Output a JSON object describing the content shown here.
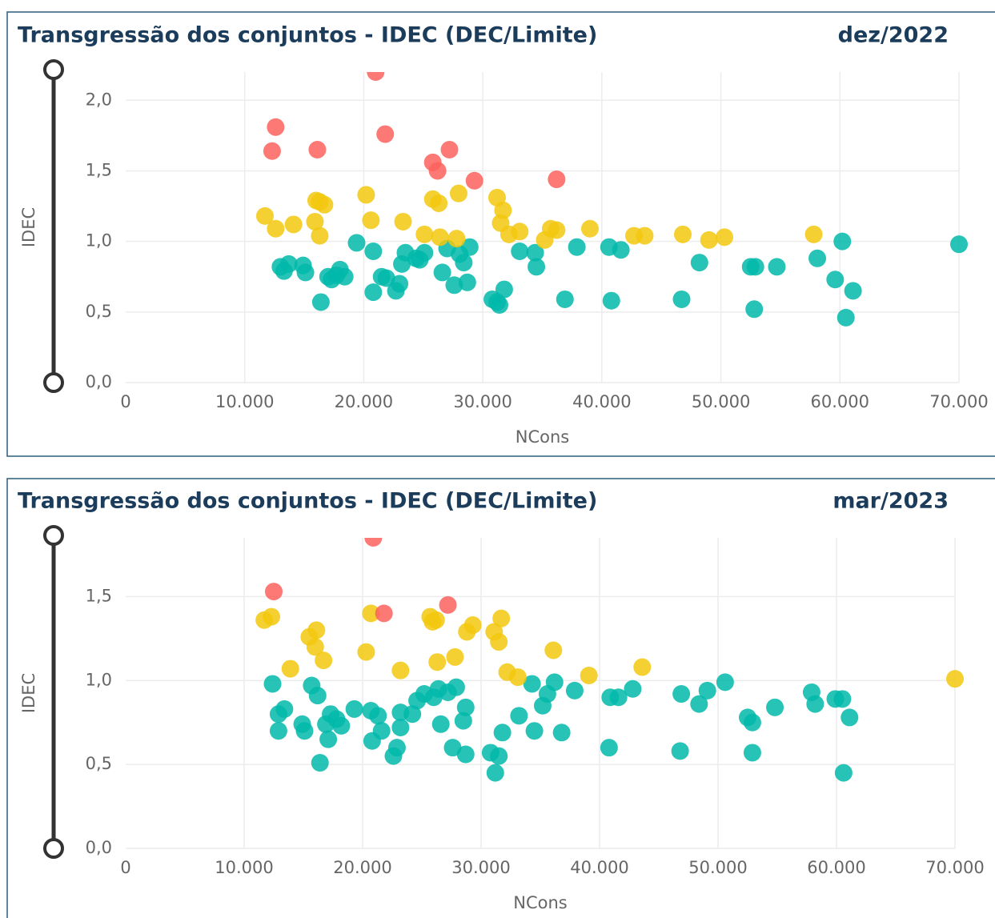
{
  "chart_data": [
    {
      "type": "scatter",
      "title": "Transgressão dos conjuntos - IDEC (DEC/Limite)",
      "subtitle": "dez/2022",
      "x_label": "NCons",
      "y_label": "IDEC",
      "grid": true,
      "xlim": [
        0,
        70000
      ],
      "ylim": [
        0,
        2.2
      ],
      "xticks": [
        0,
        {
          "value": 10000,
          "label": "10.000"
        },
        {
          "value": 20000,
          "label": "20.000"
        },
        {
          "value": 30000,
          "label": "30.000"
        },
        {
          "value": 40000,
          "label": "40.000"
        },
        {
          "value": 50000,
          "label": "50.000"
        },
        {
          "value": 60000,
          "label": "60.000"
        },
        {
          "value": 70000,
          "label": "70.000"
        }
      ],
      "yticks": [
        {
          "value": 0,
          "label": "0,0"
        },
        {
          "value": 0.5,
          "label": "0,5"
        },
        {
          "value": 1,
          "label": "1,0"
        },
        {
          "value": 1.5,
          "label": "1,5"
        },
        {
          "value": 2,
          "label": "2,0"
        }
      ],
      "series": [
        {
          "color": "#01B8AA",
          "x": [
            13000,
            13300,
            13700,
            14900,
            15100,
            16400,
            17000,
            17300,
            17700,
            18000,
            18400,
            19400,
            20800,
            20800,
            21500,
            21900,
            22700,
            23000,
            23200,
            23500,
            24400,
            24700,
            25100,
            26600,
            27000,
            27600,
            28050,
            28400,
            28700,
            28900,
            30800,
            31200,
            31400,
            31800,
            33100,
            34400,
            34500,
            36900,
            37900,
            40800,
            40600,
            41600,
            46700,
            48200,
            52500,
            52900,
            52800,
            54700,
            58100,
            59600,
            60200,
            60500,
            61100,
            70000
          ],
          "values": [
            0.82,
            0.79,
            0.84,
            0.83,
            0.78,
            0.57,
            0.75,
            0.73,
            0.76,
            0.8,
            0.75,
            0.99,
            0.93,
            0.64,
            0.75,
            0.74,
            0.65,
            0.7,
            0.84,
            0.92,
            0.88,
            0.87,
            0.92,
            0.78,
            0.95,
            0.69,
            0.91,
            0.85,
            0.71,
            0.96,
            0.59,
            0.57,
            0.55,
            0.66,
            0.93,
            0.92,
            0.82,
            0.59,
            0.96,
            0.58,
            0.96,
            0.94,
            0.59,
            0.85,
            0.82,
            0.82,
            0.52,
            0.82,
            0.88,
            0.73,
            1.0,
            0.46,
            0.65,
            0.98
          ]
        },
        {
          "color": "#F2C80F",
          "x": [
            11700,
            12600,
            14100,
            15900,
            16000,
            16300,
            16700,
            16300,
            20200,
            20600,
            23300,
            25100,
            25800,
            26300,
            26400,
            27800,
            27970,
            31200,
            31700,
            31500,
            32200,
            33100,
            35200,
            35700,
            36200,
            39000,
            42700,
            43600,
            46800,
            49000,
            50300,
            57800
          ],
          "values": [
            1.18,
            1.09,
            1.12,
            1.14,
            1.29,
            1.28,
            1.26,
            1.04,
            1.33,
            1.15,
            1.14,
            1.05,
            1.3,
            1.27,
            1.03,
            1.02,
            1.34,
            1.31,
            1.22,
            1.13,
            1.05,
            1.07,
            1.01,
            1.09,
            1.08,
            1.09,
            1.04,
            1.04,
            1.05,
            1.01,
            1.03,
            1.05
          ]
        },
        {
          "color": "#FD625E",
          "x": [
            12300,
            12600,
            16100,
            21000,
            21800,
            25800,
            26200,
            27200,
            29300,
            36200
          ],
          "values": [
            1.64,
            1.81,
            1.65,
            2.2,
            1.76,
            1.56,
            1.5,
            1.65,
            1.43,
            1.44
          ]
        }
      ]
    },
    {
      "type": "scatter",
      "title": "Transgressão dos conjuntos - IDEC (DEC/Limite)",
      "subtitle": "mar/2023",
      "x_label": "NCons",
      "y_label": "IDEC",
      "grid": true,
      "xlim": [
        0,
        70000
      ],
      "ylim": [
        0,
        1.85
      ],
      "xticks": [
        0,
        {
          "value": 10000,
          "label": "10.000"
        },
        {
          "value": 20000,
          "label": "20.000"
        },
        {
          "value": 30000,
          "label": "30.000"
        },
        {
          "value": 40000,
          "label": "40.000"
        },
        {
          "value": 50000,
          "label": "50.000"
        },
        {
          "value": 60000,
          "label": "60.000"
        },
        {
          "value": 70000,
          "label": "70.000"
        }
      ],
      "yticks": [
        {
          "value": 0,
          "label": "0,0"
        },
        {
          "value": 0.5,
          "label": "0,5"
        },
        {
          "value": 1,
          "label": "1,0"
        },
        {
          "value": 1.5,
          "label": "1,5"
        }
      ],
      "series": [
        {
          "color": "#01B8AA",
          "x": [
            12400,
            12900,
            13400,
            12900,
            14900,
            15100,
            15700,
            16200,
            16400,
            16900,
            17100,
            17300,
            17800,
            18200,
            19300,
            20700,
            20800,
            21300,
            21600,
            22600,
            22900,
            23200,
            23200,
            24200,
            24600,
            25200,
            26000,
            26400,
            26600,
            27200,
            27600,
            27900,
            28500,
            28700,
            28700,
            30800,
            31200,
            31500,
            31800,
            33200,
            34300,
            34500,
            35200,
            35600,
            36200,
            36800,
            37900,
            40800,
            40900,
            41600,
            42800,
            46800,
            46900,
            48400,
            49100,
            50600,
            52500,
            52900,
            52900,
            54800,
            57900,
            58200,
            59900,
            60500,
            60600,
            61100
          ],
          "values": [
            0.98,
            0.8,
            0.83,
            0.7,
            0.74,
            0.7,
            0.97,
            0.91,
            0.51,
            0.74,
            0.65,
            0.8,
            0.77,
            0.73,
            0.83,
            0.82,
            0.64,
            0.79,
            0.7,
            0.55,
            0.6,
            0.81,
            0.72,
            0.8,
            0.88,
            0.92,
            0.9,
            0.95,
            0.74,
            0.93,
            0.6,
            0.96,
            0.76,
            0.84,
            0.56,
            0.57,
            0.45,
            0.55,
            0.69,
            0.79,
            0.98,
            0.7,
            0.85,
            0.92,
            0.99,
            0.69,
            0.94,
            0.6,
            0.9,
            0.9,
            0.95,
            0.58,
            0.92,
            0.86,
            0.94,
            0.99,
            0.78,
            0.75,
            0.57,
            0.84,
            0.93,
            0.86,
            0.89,
            0.89,
            0.45,
            0.78
          ]
        },
        {
          "color": "#F2C80F",
          "x": [
            11700,
            12300,
            13900,
            15500,
            16100,
            16000,
            16700,
            20300,
            20700,
            23200,
            25700,
            25900,
            26200,
            26300,
            27800,
            28800,
            29300,
            31100,
            31500,
            31700,
            32200,
            33100,
            36100,
            39100,
            43600,
            70000
          ],
          "values": [
            1.36,
            1.38,
            1.07,
            1.26,
            1.3,
            1.2,
            1.12,
            1.17,
            1.4,
            1.06,
            1.38,
            1.35,
            1.36,
            1.11,
            1.14,
            1.29,
            1.33,
            1.29,
            1.23,
            1.37,
            1.05,
            1.02,
            1.18,
            1.03,
            1.08,
            1.01
          ]
        },
        {
          "color": "#FD625E",
          "x": [
            12500,
            20900,
            21800,
            27200
          ],
          "values": [
            1.53,
            1.85,
            1.4,
            1.45
          ]
        }
      ]
    }
  ]
}
